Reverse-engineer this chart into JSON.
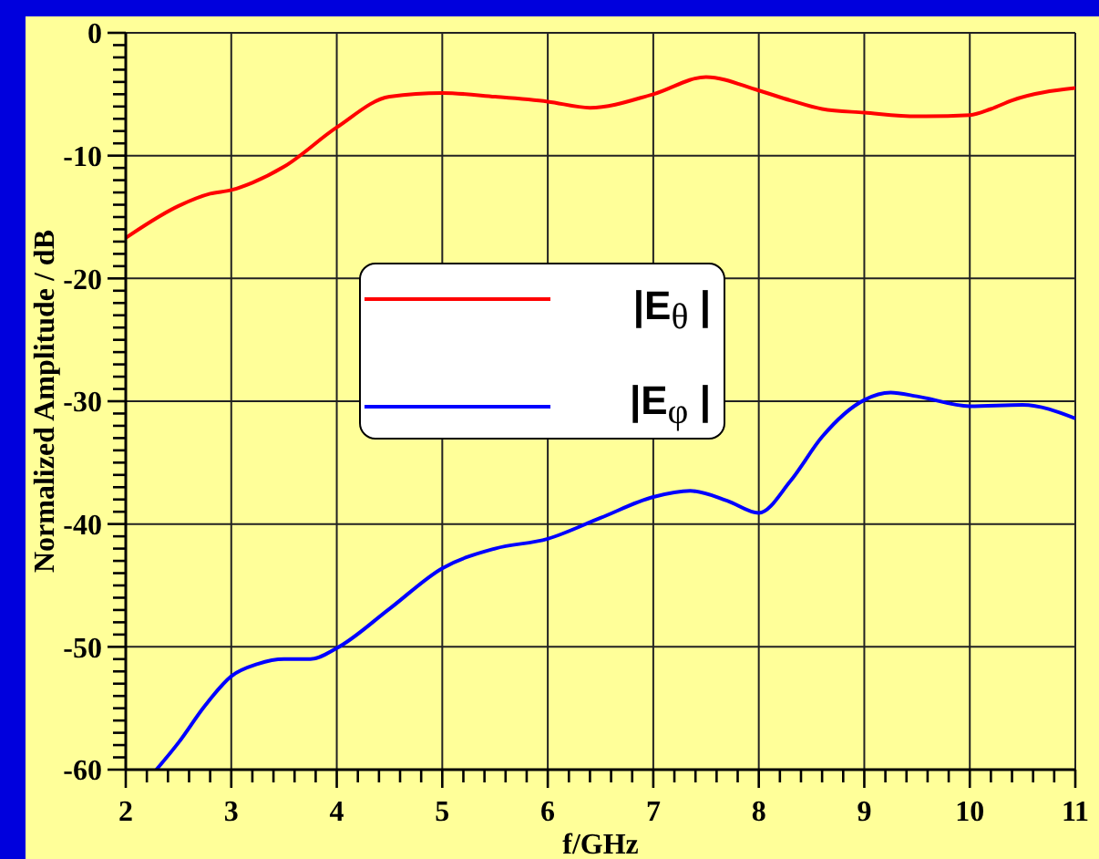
{
  "chart_data": {
    "type": "line",
    "xlabel": "f/GHz",
    "ylabel": "Normalized Amplitude / dB",
    "series": [
      {
        "name": "|E$_{θ}$ |",
        "color": "#ff0000",
        "x": [
          2,
          2.5,
          2.8,
          3,
          3.2,
          3.5,
          4,
          4.5,
          5,
          5.5,
          6,
          6.4,
          7,
          7.5,
          8,
          8.3,
          8.6,
          9,
          9.5,
          10,
          10.2,
          10.4,
          11
        ],
        "values": [
          -16.7,
          -14.1,
          -13.1,
          -12.8,
          -12.2,
          -10.9,
          -7.7,
          -5.2,
          -4.9,
          -5.2,
          -5.6,
          -6.1,
          -5.0,
          -3.6,
          -4.7,
          -5.5,
          -6.2,
          -6.5,
          -6.8,
          -6.7,
          -6.2,
          -5.5,
          -4.5
        ]
      },
      {
        "name": "|E$_{φ}$ |",
        "color": "#0000ff",
        "x": [
          2.29,
          2.5,
          2.75,
          3,
          3.25,
          3.5,
          3.75,
          4,
          4.5,
          5,
          5.5,
          6,
          6.5,
          7,
          7.35,
          7.7,
          8,
          8.3,
          8.6,
          9,
          9.25,
          9.5,
          10,
          10.5,
          11
        ],
        "values": [
          -60,
          -57.8,
          -54.8,
          -52.4,
          -51.4,
          -51.0,
          -51.0,
          -50.1,
          -46.9,
          -43.6,
          -42.0,
          -41.2,
          -39.5,
          -37.8,
          -37.3,
          -38.1,
          -39.1,
          -36.5,
          -32.9,
          -29.9,
          -29.3,
          -29.6,
          -30.4,
          -30.3,
          -31.4
        ]
      }
    ],
    "xlim": [
      2,
      11
    ],
    "ylim": [
      -60,
      0
    ],
    "xticks": [
      2,
      {
        "value": 2.2,
        "label": null
      },
      {
        "value": 2.4,
        "label": null
      },
      {
        "value": 2.6,
        "label": null
      },
      {
        "value": 2.8,
        "label": null
      },
      3,
      {
        "value": 3.2,
        "label": null
      },
      {
        "value": 3.4,
        "label": null
      },
      {
        "value": 3.6,
        "label": null
      },
      {
        "value": 3.8,
        "label": null
      },
      4,
      {
        "value": 4.2,
        "label": null
      },
      {
        "value": 4.4,
        "label": null
      },
      {
        "value": 4.6,
        "label": null
      },
      {
        "value": 4.8,
        "label": null
      },
      5,
      {
        "value": 5.2,
        "label": null
      },
      {
        "value": 5.4,
        "label": null
      },
      {
        "value": 5.6,
        "label": null
      },
      {
        "value": 5.8,
        "label": null
      },
      6,
      {
        "value": 6.2,
        "label": null
      },
      {
        "value": 6.4,
        "label": null
      },
      {
        "value": 6.6,
        "label": null
      },
      {
        "value": 6.8,
        "label": null
      },
      7,
      {
        "value": 7.2,
        "label": null
      },
      {
        "value": 7.4,
        "label": null
      },
      {
        "value": 7.6,
        "label": null
      },
      {
        "value": 7.8,
        "label": null
      },
      8,
      {
        "value": 8.2,
        "label": null
      },
      {
        "value": 8.4,
        "label": null
      },
      {
        "value": 8.6,
        "label": null
      },
      {
        "value": 8.8,
        "label": null
      },
      9,
      {
        "value": 9.2,
        "label": null
      },
      {
        "value": 9.4,
        "label": null
      },
      {
        "value": 9.6,
        "label": null
      },
      {
        "value": 9.8,
        "label": null
      },
      10,
      {
        "value": 10.2,
        "label": null
      },
      {
        "value": 10.4,
        "label": null
      },
      {
        "value": 10.6,
        "label": null
      },
      {
        "value": 10.8,
        "label": null
      },
      11
    ],
    "yticks": [
      0,
      {
        "value": -1,
        "label": null
      },
      {
        "value": -2,
        "label": null
      },
      {
        "value": -3,
        "label": null
      },
      {
        "value": -4,
        "label": null
      },
      {
        "value": -5,
        "label": null
      },
      {
        "value": -6,
        "label": null
      },
      {
        "value": -7,
        "label": null
      },
      {
        "value": -8,
        "label": null
      },
      {
        "value": -9,
        "label": null
      },
      -10,
      {
        "value": -11,
        "label": null
      },
      {
        "value": -12,
        "label": null
      },
      {
        "value": -13,
        "label": null
      },
      {
        "value": -14,
        "label": null
      },
      {
        "value": -15,
        "label": null
      },
      {
        "value": -16,
        "label": null
      },
      {
        "value": -17,
        "label": null
      },
      {
        "value": -18,
        "label": null
      },
      {
        "value": -19,
        "label": null
      },
      -20,
      {
        "value": -21,
        "label": null
      },
      {
        "value": -22,
        "label": null
      },
      {
        "value": -23,
        "label": null
      },
      {
        "value": -24,
        "label": null
      },
      {
        "value": -25,
        "label": null
      },
      {
        "value": -26,
        "label": null
      },
      {
        "value": -27,
        "label": null
      },
      {
        "value": -28,
        "label": null
      },
      {
        "value": -29,
        "label": null
      },
      -30,
      {
        "value": -31,
        "label": null
      },
      {
        "value": -32,
        "label": null
      },
      {
        "value": -33,
        "label": null
      },
      {
        "value": -34,
        "label": null
      },
      {
        "value": -35,
        "label": null
      },
      {
        "value": -36,
        "label": null
      },
      {
        "value": -37,
        "label": null
      },
      {
        "value": -38,
        "label": null
      },
      {
        "value": -39,
        "label": null
      },
      -40,
      {
        "value": -41,
        "label": null
      },
      {
        "value": -42,
        "label": null
      },
      {
        "value": -43,
        "label": null
      },
      {
        "value": -44,
        "label": null
      },
      {
        "value": -45,
        "label": null
      },
      {
        "value": -46,
        "label": null
      },
      {
        "value": -47,
        "label": null
      },
      {
        "value": -48,
        "label": null
      },
      {
        "value": -49,
        "label": null
      },
      -50,
      {
        "value": -51,
        "label": null
      },
      {
        "value": -52,
        "label": null
      },
      {
        "value": -53,
        "label": null
      },
      {
        "value": -54,
        "label": null
      },
      {
        "value": -55,
        "label": null
      },
      {
        "value": -56,
        "label": null
      },
      {
        "value": -57,
        "label": null
      },
      {
        "value": -58,
        "label": null
      },
      {
        "value": -59,
        "label": null
      },
      -60
    ],
    "grid": true,
    "legend": "center"
  }
}
